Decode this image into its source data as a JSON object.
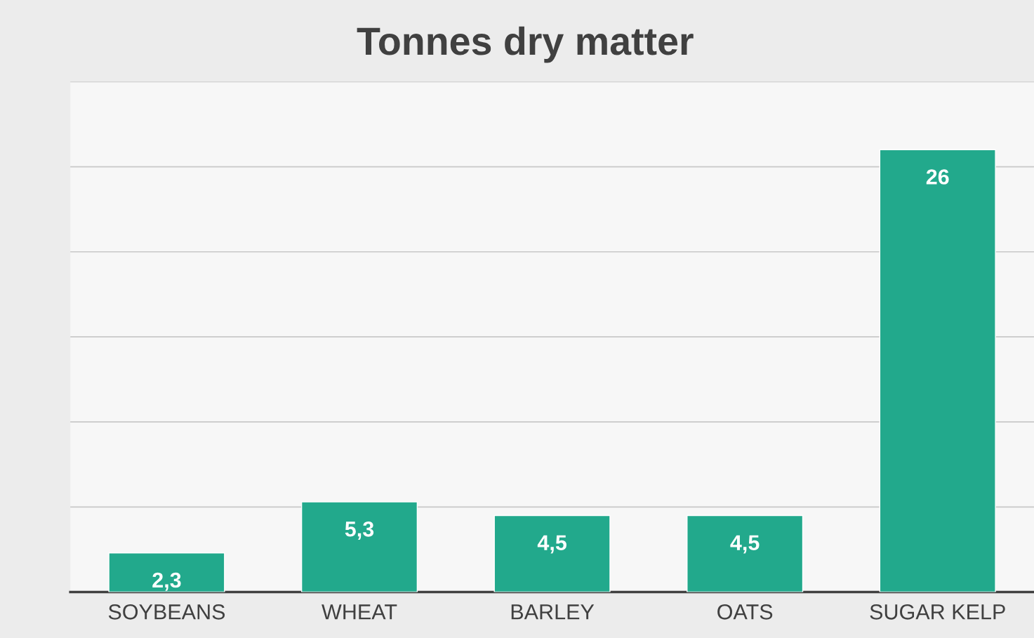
{
  "chart_data": {
    "type": "bar",
    "title": "Tonnes dry matter",
    "categories": [
      "SOYBEANS",
      "WHEAT",
      "BARLEY",
      "OATS",
      "SUGAR KELP"
    ],
    "values": [
      2.3,
      5.3,
      4.5,
      4.5,
      26
    ],
    "value_labels": [
      "2,3",
      "5,3",
      "4,5",
      "4,5",
      "26"
    ],
    "color": "#22a98c",
    "ylim": [
      0,
      30
    ],
    "yticks": [
      {
        "value": 0,
        "label": null
      },
      {
        "value": 5,
        "label": null
      },
      {
        "value": 10,
        "label": null
      },
      {
        "value": 15,
        "label": null
      },
      {
        "value": 20,
        "label": null
      },
      {
        "value": 25,
        "label": null
      },
      {
        "value": 30,
        "label": null
      }
    ],
    "tick_labels": "x",
    "grid": "y"
  }
}
